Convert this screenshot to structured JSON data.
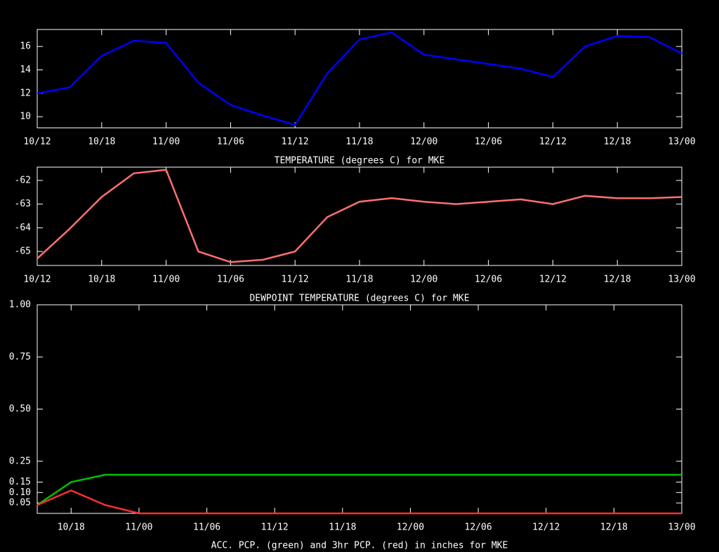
{
  "chart_data": [
    {
      "type": "line",
      "xlabel": "TEMPERATURE (degrees C) for MKE",
      "categories": [
        "10/12",
        null,
        "10/18",
        null,
        "11/00",
        null,
        "11/06",
        null,
        "11/12",
        null,
        "11/18",
        null,
        "12/00",
        null,
        "12/06",
        null,
        "12/12",
        null,
        "12/18",
        null,
        "13/00"
      ],
      "series": [
        {
          "color": "#0000ff",
          "values": [
            12.0,
            12.5,
            15.2,
            16.5,
            16.3,
            12.9,
            11.0,
            10.1,
            9.3,
            13.7,
            16.6,
            17.2,
            15.3,
            14.9,
            14.5,
            14.1,
            13.4,
            16.0,
            16.9,
            16.8,
            15.4
          ]
        }
      ],
      "ylim": [
        9.05,
        17.45
      ],
      "yticks": [
        10,
        12,
        14,
        16
      ]
    },
    {
      "type": "line",
      "xlabel": "DEWPOINT TEMPERATURE (degrees C) for MKE",
      "categories": [
        "10/12",
        null,
        "10/18",
        null,
        "11/00",
        null,
        "11/06",
        null,
        "11/12",
        null,
        "11/18",
        null,
        "12/00",
        null,
        "12/06",
        null,
        "12/12",
        null,
        "12/18",
        null,
        "13/00"
      ],
      "series": [
        {
          "color": "#ff7070",
          "values": [
            -65.3,
            -64.05,
            -62.7,
            -61.7,
            -61.55,
            -65.0,
            -65.45,
            -65.35,
            -65.0,
            -63.55,
            -62.9,
            -62.75,
            -62.9,
            -63.0,
            -62.9,
            -62.8,
            -63.0,
            -62.65,
            -62.75,
            -62.75,
            -62.7
          ]
        }
      ],
      "ylim": [
        -65.59,
        -61.44
      ],
      "yticks": [
        -65,
        -64,
        -63,
        -62
      ]
    },
    {
      "type": "line",
      "xlabel": "ACC. PCP. (green) and 3hr PCP. (red) in inches for MKE",
      "categories": [
        null,
        "10/18",
        null,
        "11/00",
        null,
        "11/06",
        null,
        "11/12",
        null,
        "11/18",
        null,
        "12/00",
        null,
        "12/06",
        null,
        "12/12",
        null,
        "12/18",
        null,
        "13/00"
      ],
      "series": [
        {
          "color": "#00c000",
          "values": [
            0.04,
            0.15,
            0.185,
            0.185,
            0.185,
            0.185,
            0.185,
            0.185,
            0.185,
            0.185,
            0.185,
            0.185,
            0.185,
            0.185,
            0.185,
            0.185,
            0.185,
            0.185,
            0.185,
            0.185
          ]
        },
        {
          "color": "#ff3030",
          "values": [
            0.04,
            0.11,
            0.04,
            0,
            0,
            0,
            0,
            0,
            0,
            0,
            0,
            0,
            0,
            0,
            0,
            0,
            0,
            0,
            0,
            0
          ]
        }
      ],
      "ylim": [
        0,
        1
      ],
      "yticks": [
        {
          "value": 0.05,
          "label": "0.05"
        },
        {
          "value": 0.1,
          "label": "0.10"
        },
        {
          "value": 0.15,
          "label": "0.15"
        },
        {
          "value": 0.25,
          "label": "0.25"
        },
        {
          "value": 0.5,
          "label": "0.50"
        },
        {
          "value": 0.75,
          "label": "0.75"
        },
        {
          "value": 1,
          "label": "1.00"
        }
      ]
    }
  ]
}
